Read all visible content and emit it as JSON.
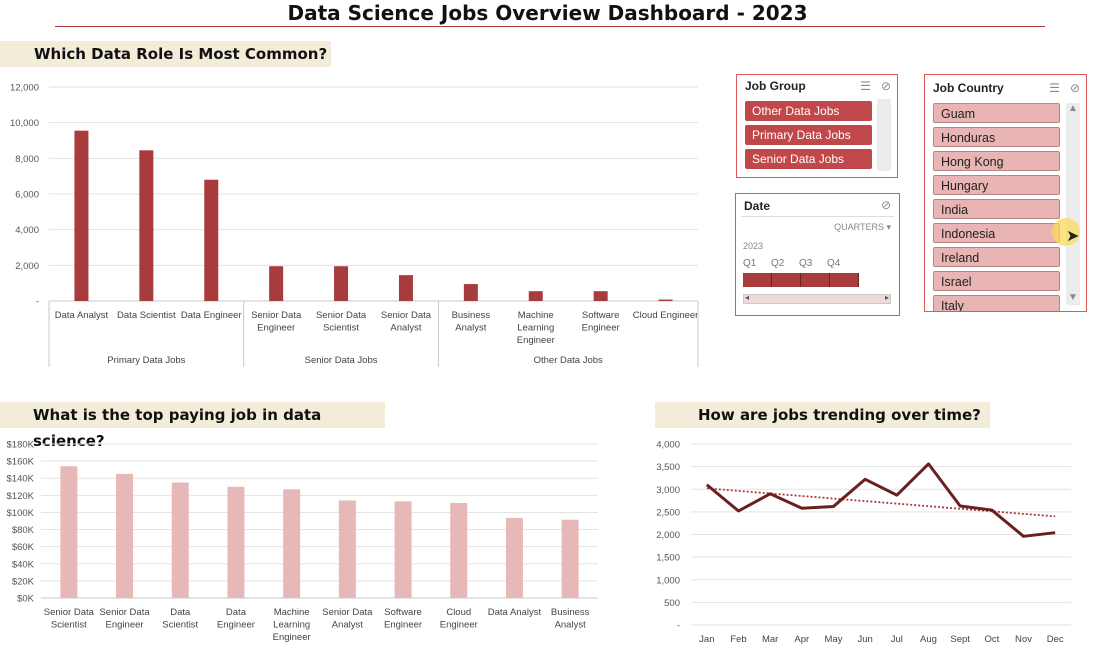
{
  "dashboard": {
    "title": "Data Science Jobs Overview Dashboard - 2023"
  },
  "banners": {
    "role": "Which Data Role Is Most Common?",
    "pay": "What is the top paying job in data science?",
    "trend": "How are jobs trending over time?"
  },
  "colors": {
    "accent": "#a83c3c",
    "pay_bar": "#e6b8b8",
    "trend_line": "#6b2020",
    "banner": "#f3ecd9"
  },
  "chart_data": [
    {
      "id": "most-common",
      "type": "bar",
      "title": "Which Data Role Is Most Common?",
      "groups": [
        {
          "name": "Primary Data Jobs",
          "categories": [
            "Data Analyst",
            "Data Scientist",
            "Data Engineer"
          ]
        },
        {
          "name": "Senior Data Jobs",
          "categories": [
            "Senior Data Engineer",
            "Senior Data Scientist",
            "Senior Data Analyst"
          ]
        },
        {
          "name": "Other Data Jobs",
          "categories": [
            "Business Analyst",
            "Machine Learning Engineer",
            "Software Engineer",
            "Cloud Engineer"
          ]
        }
      ],
      "tick_lines": [
        [
          "Data Analyst"
        ],
        [
          "Data Scientist"
        ],
        [
          "Data Engineer"
        ],
        [
          "Senior Data",
          "Engineer"
        ],
        [
          "Senior Data",
          "Scientist"
        ],
        [
          "Senior Data",
          "Analyst"
        ],
        [
          "Business",
          "Analyst"
        ],
        [
          "Machine",
          "Learning",
          "Engineer"
        ],
        [
          "Software",
          "Engineer"
        ],
        [
          "Cloud Engineer"
        ]
      ],
      "values": [
        9550,
        8450,
        6800,
        1950,
        1950,
        1450,
        950,
        550,
        550,
        80
      ],
      "ylim": [
        0,
        12000
      ],
      "yticks": [
        "-",
        "2,000",
        "4,000",
        "6,000",
        "8,000",
        "10,000",
        "12,000"
      ],
      "grid": true
    },
    {
      "id": "top-paying",
      "type": "bar",
      "title": "What is the top paying job in data science?",
      "categories": [
        "Senior Data Scientist",
        "Senior Data Engineer",
        "Data Scientist",
        "Data Engineer",
        "Machine Learning Engineer",
        "Senior Data Analyst",
        "Software Engineer",
        "Cloud Engineer",
        "Data Analyst",
        "Business Analyst"
      ],
      "tick_lines": [
        [
          "Senior Data",
          "Scientist"
        ],
        [
          "Senior Data",
          "Engineer"
        ],
        [
          "Data",
          "Scientist"
        ],
        [
          "Data",
          "Engineer"
        ],
        [
          "Machine",
          "Learning",
          "Engineer"
        ],
        [
          "Senior Data",
          "Analyst"
        ],
        [
          "Software",
          "Engineer"
        ],
        [
          "Cloud",
          "Engineer"
        ],
        [
          "Data Analyst"
        ],
        [
          "Business",
          "Analyst"
        ]
      ],
      "values": [
        154000,
        145000,
        135000,
        130000,
        127000,
        114000,
        113000,
        111000,
        93500,
        91500
      ],
      "ylim": [
        0,
        180000
      ],
      "yticks": [
        "$0K",
        "$20K",
        "$40K",
        "$60K",
        "$80K",
        "$100K",
        "$120K",
        "$140K",
        "$160K",
        "$180K"
      ],
      "grid": true
    },
    {
      "id": "trend",
      "type": "line",
      "title": "How are jobs trending over time?",
      "categories": [
        "Jan",
        "Feb",
        "Mar",
        "Apr",
        "May",
        "Jun",
        "Jul",
        "Aug",
        "Sept",
        "Oct",
        "Nov",
        "Dec"
      ],
      "values": [
        3100,
        2520,
        2900,
        2580,
        2620,
        3220,
        2870,
        3560,
        2630,
        2540,
        1960,
        2040
      ],
      "trendline": {
        "start": 3020,
        "end": 2400,
        "style": "dotted"
      },
      "ylim": [
        0,
        4000
      ],
      "yticks": [
        "-",
        "500",
        "1,000",
        "1,500",
        "2,000",
        "2,500",
        "3,000",
        "3,500",
        "4,000"
      ],
      "grid": true
    }
  ],
  "slicers": {
    "job_group": {
      "title": "Job Group",
      "items": [
        "Other Data Jobs",
        "Primary Data Jobs",
        "Senior Data Jobs"
      ]
    },
    "date": {
      "title": "Date",
      "level": "QUARTERS",
      "year": "2023",
      "quarters": [
        "Q1",
        "Q2",
        "Q3",
        "Q4"
      ],
      "selected_fraction": 1.0
    },
    "job_country": {
      "title": "Job Country",
      "items": [
        "Guam",
        "Honduras",
        "Hong Kong",
        "Hungary",
        "India",
        "Indonesia",
        "Ireland",
        "Israel",
        "Italy"
      ]
    }
  }
}
